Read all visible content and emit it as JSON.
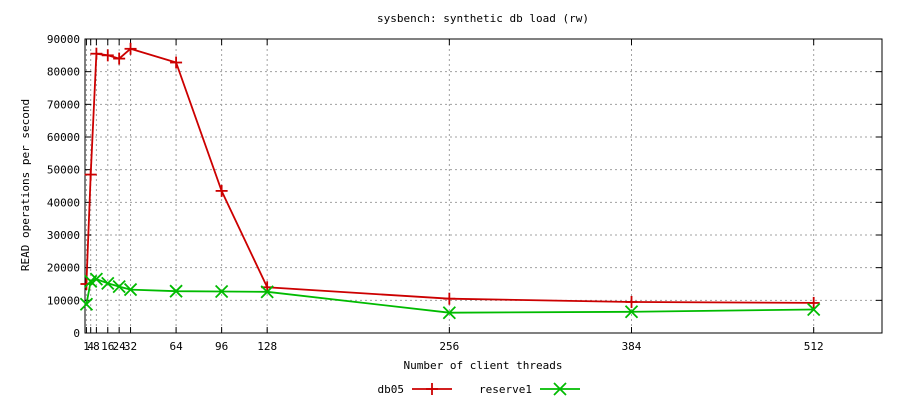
{
  "chart_data": {
    "type": "line",
    "title": "sysbench: synthetic db load (rw)",
    "xlabel": "Number of client threads",
    "ylabel": "READ operations per second",
    "xlim": [
      0,
      560
    ],
    "ylim": [
      0,
      90000
    ],
    "xticks": [
      1,
      4,
      8,
      16,
      24,
      32,
      64,
      96,
      128,
      256,
      384,
      512
    ],
    "xtick_labels": [
      "1",
      "4",
      "8",
      "16",
      "24",
      "32",
      "64",
      "96",
      "128",
      "256",
      "384",
      "512"
    ],
    "yticks": [
      0,
      10000,
      20000,
      30000,
      40000,
      50000,
      60000,
      70000,
      80000,
      90000
    ],
    "ytick_labels": [
      "0",
      "10000",
      "20000",
      "30000",
      "40000",
      "50000",
      "60000",
      "70000",
      "80000",
      "90000"
    ],
    "grid": true,
    "legend_position": "bottom",
    "series": [
      {
        "name": "db05",
        "color": "#cc0000",
        "marker": "plus",
        "points": [
          {
            "x": 1,
            "y": 15000
          },
          {
            "x": 4,
            "y": 48500
          },
          {
            "x": 8,
            "y": 85500
          },
          {
            "x": 16,
            "y": 85000
          },
          {
            "x": 24,
            "y": 84000
          },
          {
            "x": 32,
            "y": 87000
          },
          {
            "x": 64,
            "y": 82800
          },
          {
            "x": 96,
            "y": 43500
          },
          {
            "x": 128,
            "y": 14000
          },
          {
            "x": 256,
            "y": 10500
          },
          {
            "x": 384,
            "y": 9500
          },
          {
            "x": 512,
            "y": 9200
          }
        ]
      },
      {
        "name": "reserve1",
        "color": "#00bb00",
        "marker": "x",
        "points": [
          {
            "x": 1,
            "y": 8800
          },
          {
            "x": 4,
            "y": 15800
          },
          {
            "x": 8,
            "y": 16500
          },
          {
            "x": 16,
            "y": 15200
          },
          {
            "x": 24,
            "y": 14200
          },
          {
            "x": 32,
            "y": 13300
          },
          {
            "x": 64,
            "y": 12800
          },
          {
            "x": 96,
            "y": 12700
          },
          {
            "x": 128,
            "y": 12600
          },
          {
            "x": 256,
            "y": 6200
          },
          {
            "x": 384,
            "y": 6500
          },
          {
            "x": 512,
            "y": 7200
          }
        ]
      }
    ]
  }
}
